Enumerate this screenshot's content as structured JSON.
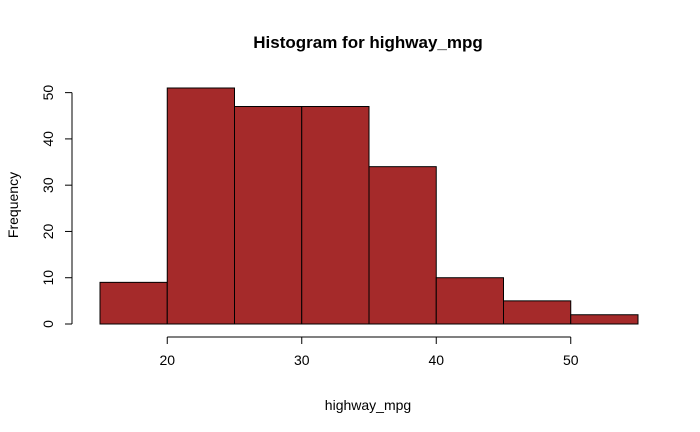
{
  "chart_data": {
    "type": "bar",
    "title": "Histogram for highway_mpg",
    "xlabel": "highway_mpg",
    "ylabel": "Frequency",
    "bins": [
      {
        "from": 15,
        "to": 20,
        "count": 9
      },
      {
        "from": 20,
        "to": 25,
        "count": 51
      },
      {
        "from": 25,
        "to": 30,
        "count": 47
      },
      {
        "from": 30,
        "to": 35,
        "count": 47
      },
      {
        "from": 35,
        "to": 40,
        "count": 34
      },
      {
        "from": 40,
        "to": 45,
        "count": 10
      },
      {
        "from": 45,
        "to": 50,
        "count": 5
      },
      {
        "from": 50,
        "to": 55,
        "count": 2
      }
    ],
    "x_ticks": [
      "20",
      "30",
      "40",
      "50"
    ],
    "y_ticks": [
      "0",
      "10",
      "20",
      "30",
      "40",
      "50"
    ],
    "xlim": [
      15,
      55
    ],
    "ylim": [
      0,
      51
    ],
    "grid": false,
    "bar_color": "#a52a2a"
  }
}
